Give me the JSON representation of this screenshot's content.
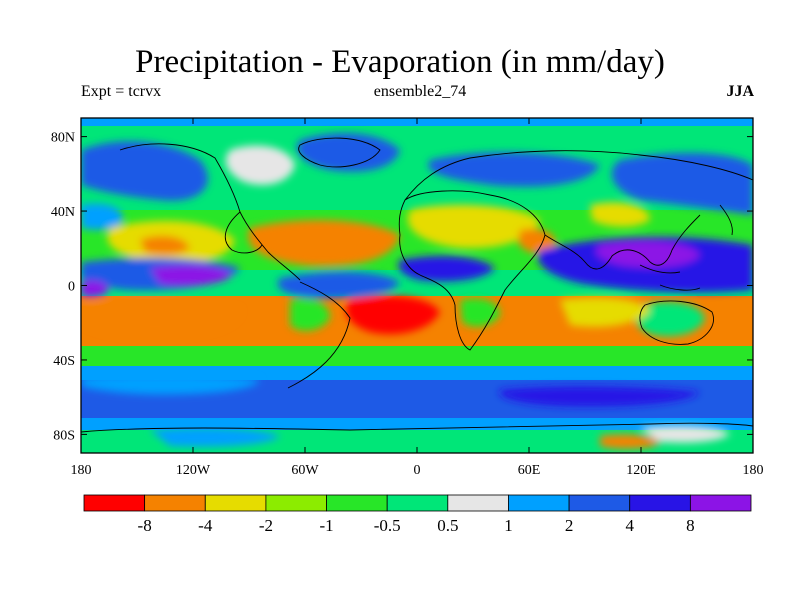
{
  "title": "Precipitation - Evaporation (in mm/day)",
  "experiment": "Expt = tcrvx",
  "ensemble": "ensemble2_74",
  "season": "JJA",
  "axes": {
    "lat_labels": [
      "80N",
      "40N",
      "0",
      "40S",
      "80S"
    ],
    "lat_values": [
      80,
      40,
      0,
      -40,
      -80
    ],
    "lon_labels": [
      "180",
      "120W",
      "60W",
      "0",
      "60E",
      "120E",
      "180"
    ],
    "lon_values": [
      -180,
      -120,
      -60,
      0,
      60,
      120,
      180
    ],
    "lat_range": [
      -90,
      90
    ],
    "lon_range": [
      -180,
      180
    ]
  },
  "colorbar": {
    "colors": [
      "#ff0000",
      "#f58200",
      "#e6dc00",
      "#8cec00",
      "#28e628",
      "#00e678",
      "#e6e6e6",
      "#00a0ff",
      "#1e5ae6",
      "#2814e6",
      "#8c14e6"
    ],
    "tick_labels": [
      "-8",
      "-4",
      "-2",
      "-1",
      "-0.5",
      "0.5",
      "1",
      "2",
      "4",
      "8"
    ]
  },
  "map_colors": {
    "deep_red": "#ff0000",
    "orange": "#f58200",
    "yellow": "#e6dc00",
    "lime": "#8cec00",
    "green": "#28e628",
    "teal_green": "#00e678",
    "grey": "#e6e6e6",
    "light_blue": "#00a0ff",
    "blue": "#1e5ae6",
    "deep_blue": "#2814e6",
    "purple": "#8c14e6"
  }
}
